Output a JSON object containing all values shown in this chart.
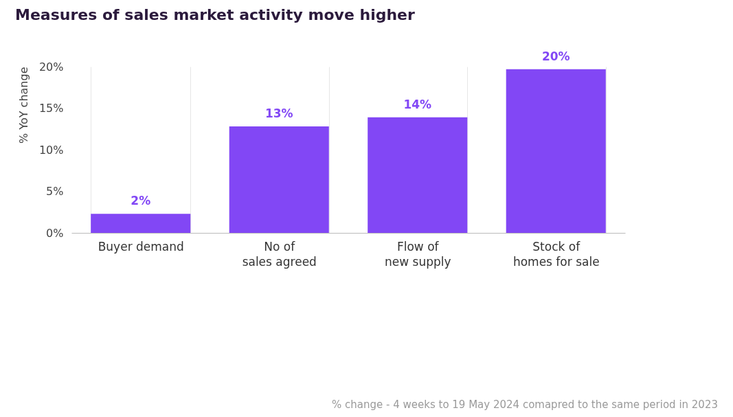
{
  "chart_data": {
    "type": "bar",
    "title": "Measures of sales market activity move higher",
    "ylabel": "% YoY change",
    "categories": [
      "Buyer demand",
      "No of\nsales agreed",
      "Flow of\nnew supply",
      "Stock of\nhomes for sale"
    ],
    "values": [
      2.3,
      12.8,
      13.9,
      19.7
    ],
    "value_labels": [
      "2%",
      "13%",
      "14%",
      "20%"
    ],
    "color": "#8247f5",
    "ylim": [
      0,
      20
    ],
    "yticks": [
      {
        "value": 0,
        "label": "0%"
      },
      {
        "value": 5,
        "label": "5%"
      },
      {
        "value": 10,
        "label": "10%"
      },
      {
        "value": 15,
        "label": "15%"
      },
      {
        "value": 20,
        "label": "20%"
      }
    ],
    "grid": "x",
    "annotations": [
      "% change - 4 weeks to 19 May 2024 comapred to the same period in 2023"
    ]
  }
}
